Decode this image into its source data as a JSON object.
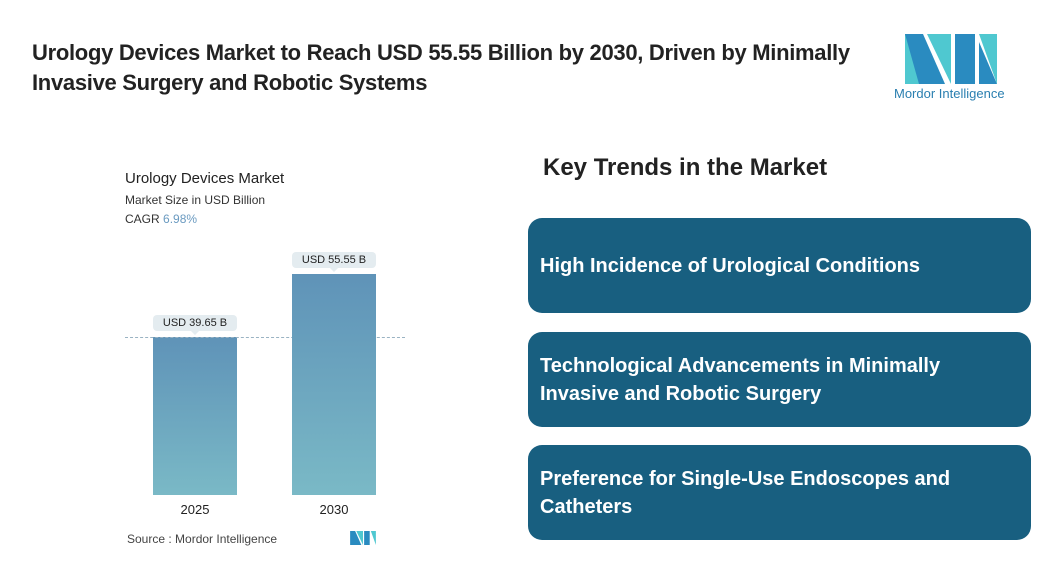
{
  "header": {
    "title": "Urology Devices Market to Reach USD 55.55 Billion by 2030, Driven by Minimally Invasive Surgery and Robotic Systems",
    "logo_text": "Mordor Intelligence"
  },
  "chart_data": {
    "type": "bar",
    "title": "Urology Devices Market",
    "subtitle": "Market Size in USD Billion",
    "cagr_label": "CAGR",
    "cagr_value": "6.98%",
    "categories": [
      "2025",
      "2030"
    ],
    "values": [
      39.65,
      55.55
    ],
    "data_labels": [
      "USD 39.65 B",
      "USD 55.55 B"
    ],
    "ylim": [
      0,
      55.55
    ],
    "grid": false,
    "colors": [
      "#5f93b8",
      "#7ab9c6"
    ],
    "source": "Source :  Mordor Intelligence"
  },
  "trends": {
    "title": "Key Trends in the Market",
    "items": [
      "High Incidence of Urological Conditions",
      "Technological Advancements in Minimally Invasive and Robotic Surgery",
      "Preference for Single-Use Endoscopes and Catheters"
    ],
    "box_color": "#185f80"
  }
}
